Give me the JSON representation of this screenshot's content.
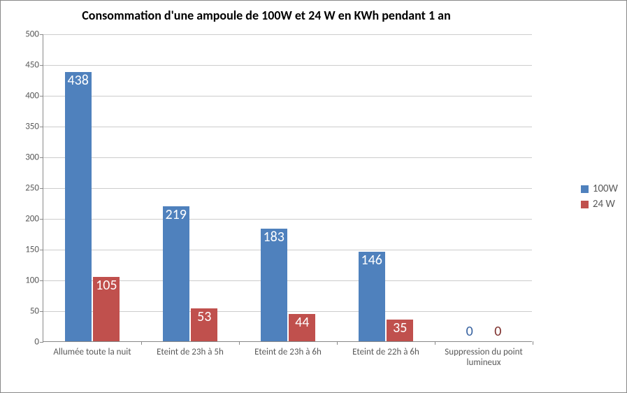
{
  "chart": {
    "type": "bar-grouped",
    "title": "Consommation d'une ampoule de 100W et 24 W en KWh pendant 1 an",
    "title_fontsize": 18,
    "categories": [
      "Allumée toute la nuit",
      "Eteint de 23h à 5h",
      "Eteint de 23h à 6h",
      "Eteint de 22h à 6h",
      "Suppression du point lumineux"
    ],
    "series": [
      {
        "name": "100W",
        "color": "#4f81bd",
        "values": [
          438,
          219,
          183,
          146,
          0
        ]
      },
      {
        "name": "24 W",
        "color": "#c0504d",
        "values": [
          105,
          53,
          44,
          35,
          0
        ]
      }
    ],
    "y_axis": {
      "min": 0,
      "max": 500,
      "step": 50
    },
    "axis_label_fontsize": 13,
    "data_label_fontsize": 20,
    "legend_fontsize": 15,
    "gridline_color": "#cccccc",
    "axis_color": "#888888",
    "label_blue_color": "#3762a0",
    "label_red_color": "#7d2f2c",
    "bar_rel_width": 0.27,
    "bar_gap": 0.02,
    "background_color": "#ffffff"
  }
}
